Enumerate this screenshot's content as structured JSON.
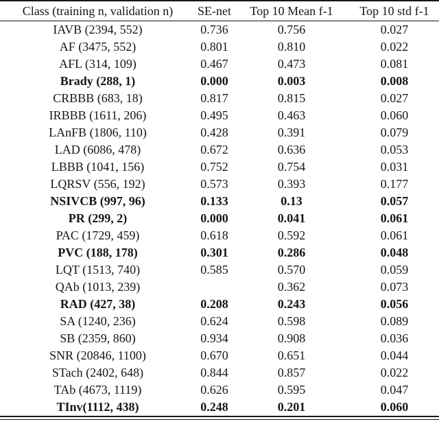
{
  "table": {
    "columns": [
      "Class (training n, validation n)",
      "SE-net",
      "Top 10 Mean f-1",
      "Top 10 std f-1"
    ],
    "rows": [
      {
        "class": "IAVB (2394, 552)",
        "se_net": "0.736",
        "mean": "0.756",
        "std": "0.027",
        "bold": false
      },
      {
        "class": "AF (3475, 552)",
        "se_net": "0.801",
        "mean": "0.810",
        "std": "0.022",
        "bold": false
      },
      {
        "class": "AFL (314, 109)",
        "se_net": "0.467",
        "mean": "0.473",
        "std": "0.081",
        "bold": false
      },
      {
        "class": "Brady (288, 1)",
        "se_net": "0.000",
        "mean": "0.003",
        "std": "0.008",
        "bold": true
      },
      {
        "class": "CRBBB (683, 18)",
        "se_net": "0.817",
        "mean": "0.815",
        "std": "0.027",
        "bold": false
      },
      {
        "class": "IRBBB (1611, 206)",
        "se_net": "0.495",
        "mean": "0.463",
        "std": "0.060",
        "bold": false
      },
      {
        "class": "LAnFB (1806, 110)",
        "se_net": "0.428",
        "mean": "0.391",
        "std": "0.079",
        "bold": false
      },
      {
        "class": "LAD (6086, 478)",
        "se_net": "0.672",
        "mean": "0.636",
        "std": "0.053",
        "bold": false
      },
      {
        "class": "LBBB (1041, 156)",
        "se_net": "0.752",
        "mean": "0.754",
        "std": "0.031",
        "bold": false
      },
      {
        "class": "LQRSV (556, 192)",
        "se_net": "0.573",
        "mean": "0.393",
        "std": "0.177",
        "bold": false
      },
      {
        "class": "NSIVCB (997, 96)",
        "se_net": "0.133",
        "mean": "0.13",
        "std": "0.057",
        "bold": true
      },
      {
        "class": "PR (299, 2)",
        "se_net": "0.000",
        "mean": "0.041",
        "std": "0.061",
        "bold": true
      },
      {
        "class": "PAC (1729, 459)",
        "se_net": "0.618",
        "mean": "0.592",
        "std": "0.061",
        "bold": false
      },
      {
        "class": "PVC (188, 178)",
        "se_net": "0.301",
        "mean": "0.286",
        "std": "0.048",
        "bold": true
      },
      {
        "class": "LQT (1513, 740)",
        "se_net": "0.585",
        "mean": "0.570",
        "std": "0.059",
        "bold": false
      },
      {
        "class": "QAb (1013, 239)",
        "se_net": "",
        "mean": "0.362",
        "std": "0.073",
        "bold": false
      },
      {
        "class": "RAD (427, 38)",
        "se_net": "0.208",
        "mean": "0.243",
        "std": "0.056",
        "bold": true
      },
      {
        "class": "SA (1240, 236)",
        "se_net": "0.624",
        "mean": "0.598",
        "std": "0.089",
        "bold": false
      },
      {
        "class": "SB (2359, 860)",
        "se_net": "0.934",
        "mean": "0.908",
        "std": "0.036",
        "bold": false
      },
      {
        "class": "SNR (20846, 1100)",
        "se_net": "0.670",
        "mean": "0.651",
        "std": "0.044",
        "bold": false
      },
      {
        "class": "STach (2402, 648)",
        "se_net": "0.844",
        "mean": "0.857",
        "std": "0.022",
        "bold": false
      },
      {
        "class": "TAb (4673, 1119)",
        "se_net": "0.626",
        "mean": "0.595",
        "std": "0.047",
        "bold": false
      },
      {
        "class": "TInv(1112, 438)",
        "se_net": "0.248",
        "mean": "0.201",
        "std": "0.060",
        "bold": true
      }
    ]
  }
}
